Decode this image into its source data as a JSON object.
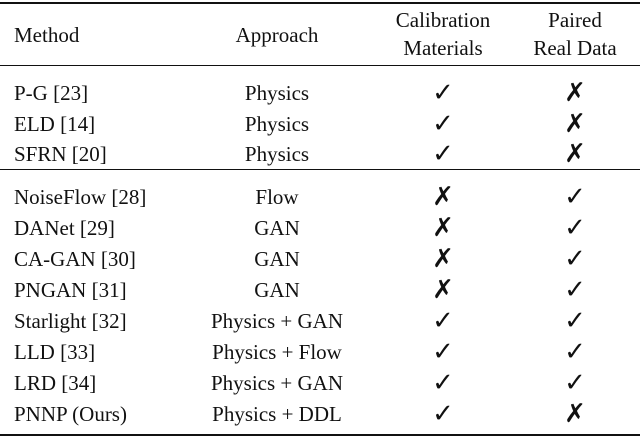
{
  "table": {
    "header": [
      [
        "Method"
      ],
      [
        "Approach"
      ],
      [
        "Calibration",
        "Materials"
      ],
      [
        "Paired",
        "Real Data"
      ]
    ],
    "groups": [
      [
        [
          "P-G [23]",
          "Physics",
          "✓",
          "✗"
        ],
        [
          "ELD [14]",
          "Physics",
          "✓",
          "✗"
        ],
        [
          "SFRN [20]",
          "Physics",
          "✓",
          "✗"
        ]
      ],
      [
        [
          "NoiseFlow [28]",
          "Flow",
          "✗",
          "✓"
        ],
        [
          "DANet [29]",
          "GAN",
          "✗",
          "✓"
        ],
        [
          "CA-GAN [30]",
          "GAN",
          "✗",
          "✓"
        ],
        [
          "PNGAN [31]",
          "GAN",
          "✗",
          "✓"
        ],
        [
          "Starlight [32]",
          "Physics + GAN",
          "✓",
          "✓"
        ],
        [
          "LLD [33]",
          "Physics + Flow",
          "✓",
          "✓"
        ],
        [
          "LRD [34]",
          "Physics + GAN",
          "✓",
          "✓"
        ],
        [
          "PNNP (Ours)",
          "Physics + DDL",
          "✓",
          "✗"
        ]
      ]
    ]
  }
}
